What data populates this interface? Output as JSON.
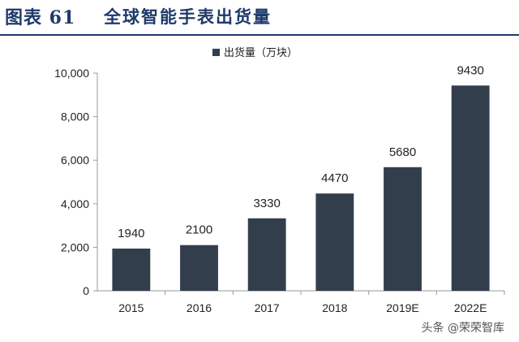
{
  "header": {
    "figure_label": "图表 61",
    "title": "全球智能手表出货量"
  },
  "colors": {
    "bar": "#333e4d",
    "title": "#1f3a6b",
    "axis": "#999999"
  },
  "watermark": "头条 @荣荣智库",
  "chart_data": {
    "type": "bar",
    "categories": [
      "2015",
      "2016",
      "2017",
      "2018",
      "2019E",
      "2022E"
    ],
    "series": [
      {
        "name": "出货量（万块）",
        "values": [
          1940,
          2100,
          3330,
          4470,
          5680,
          9430
        ]
      }
    ],
    "data_labels": [
      "1940",
      "2100",
      "3330",
      "4470",
      "5680",
      "9430"
    ],
    "ylim": [
      0,
      10000
    ],
    "yticks": [
      0,
      2000,
      4000,
      6000,
      8000,
      10000
    ],
    "ytick_labels": [
      "0",
      "2,000",
      "4,000",
      "6,000",
      "8,000",
      "10,000"
    ],
    "legend_position": "top-center",
    "grid": false,
    "title": "",
    "xlabel": "",
    "ylabel": ""
  }
}
